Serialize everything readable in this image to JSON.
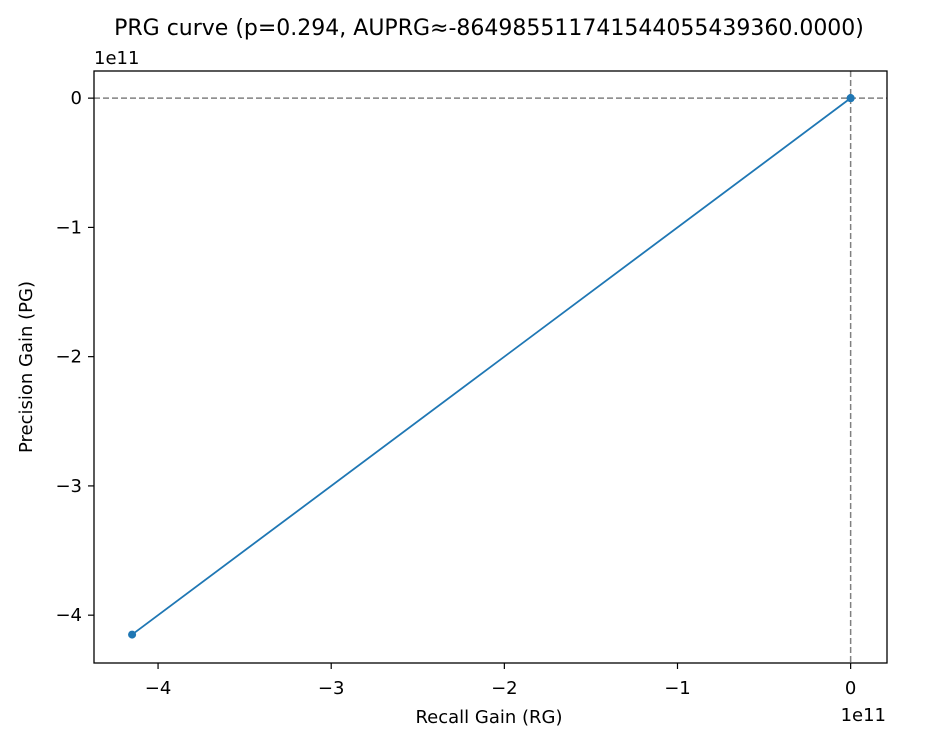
{
  "chart_data": {
    "type": "line",
    "title": "PRG curve (p=0.294, AUPRG≈-864985511741544055439360.0000)",
    "xlabel": "Recall Gain (RG)",
    "ylabel": "Precision Gain (PG)",
    "x_offset_label": "1e11",
    "y_offset_label": "1e11",
    "xlim": [
      -4.37,
      0.21
    ],
    "ylim": [
      -4.37,
      0.21
    ],
    "xticks": [
      -4,
      -3,
      -2,
      -1,
      0
    ],
    "xtick_labels": [
      "−4",
      "−3",
      "−2",
      "−1",
      "0"
    ],
    "yticks": [
      0,
      -1,
      -2,
      -3,
      -4
    ],
    "ytick_labels": [
      "0",
      "−1",
      "−2",
      "−3",
      "−4"
    ],
    "series": [
      {
        "x": [
          -4.15,
          0.0,
          0.0,
          0.0
        ],
        "y": [
          -4.15,
          0.0,
          0.0,
          0.0
        ],
        "color": "#1f77b4",
        "marker": "circle"
      }
    ],
    "reference_lines": [
      {
        "axis": "y",
        "value": 0,
        "style": "dashed",
        "color": "#808080"
      },
      {
        "axis": "x",
        "value": 0,
        "style": "dashed",
        "color": "#808080"
      }
    ],
    "grid": false
  }
}
